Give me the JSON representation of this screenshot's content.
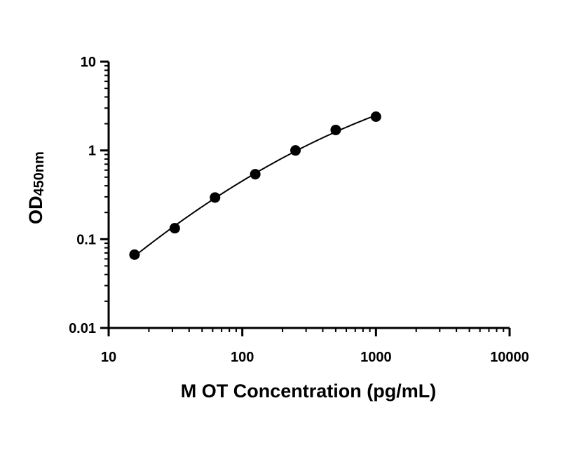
{
  "chart_data": {
    "type": "scatter",
    "title": "",
    "xlabel": "M OT Concentration (pg/mL)",
    "ylabel": {
      "main": "OD",
      "subscript": "450nm"
    },
    "x_scale": "log",
    "y_scale": "log",
    "xlim": [
      10,
      10000
    ],
    "ylim": [
      0.01,
      10
    ],
    "x_ticks": [
      {
        "value": 10,
        "label": "10"
      },
      {
        "value": 100,
        "label": "100"
      },
      {
        "value": 1000,
        "label": "1000"
      },
      {
        "value": 10000,
        "label": "10000"
      }
    ],
    "y_ticks": [
      {
        "value": 0.01,
        "label": "0.01"
      },
      {
        "value": 0.1,
        "label": "0.1"
      },
      {
        "value": 1,
        "label": "1"
      },
      {
        "value": 10,
        "label": "10"
      }
    ],
    "grid": false,
    "legend": "none",
    "series": [
      {
        "x": [
          15.625,
          31.25,
          62.5,
          125,
          250,
          500,
          1000
        ],
        "y": [
          0.067,
          0.133,
          0.295,
          0.54,
          1.0,
          1.7,
          2.4
        ],
        "marker": "circle",
        "fit_curve": true
      }
    ],
    "colors": {
      "marker": "#000000",
      "line": "#000000",
      "axis": "#000000"
    }
  }
}
